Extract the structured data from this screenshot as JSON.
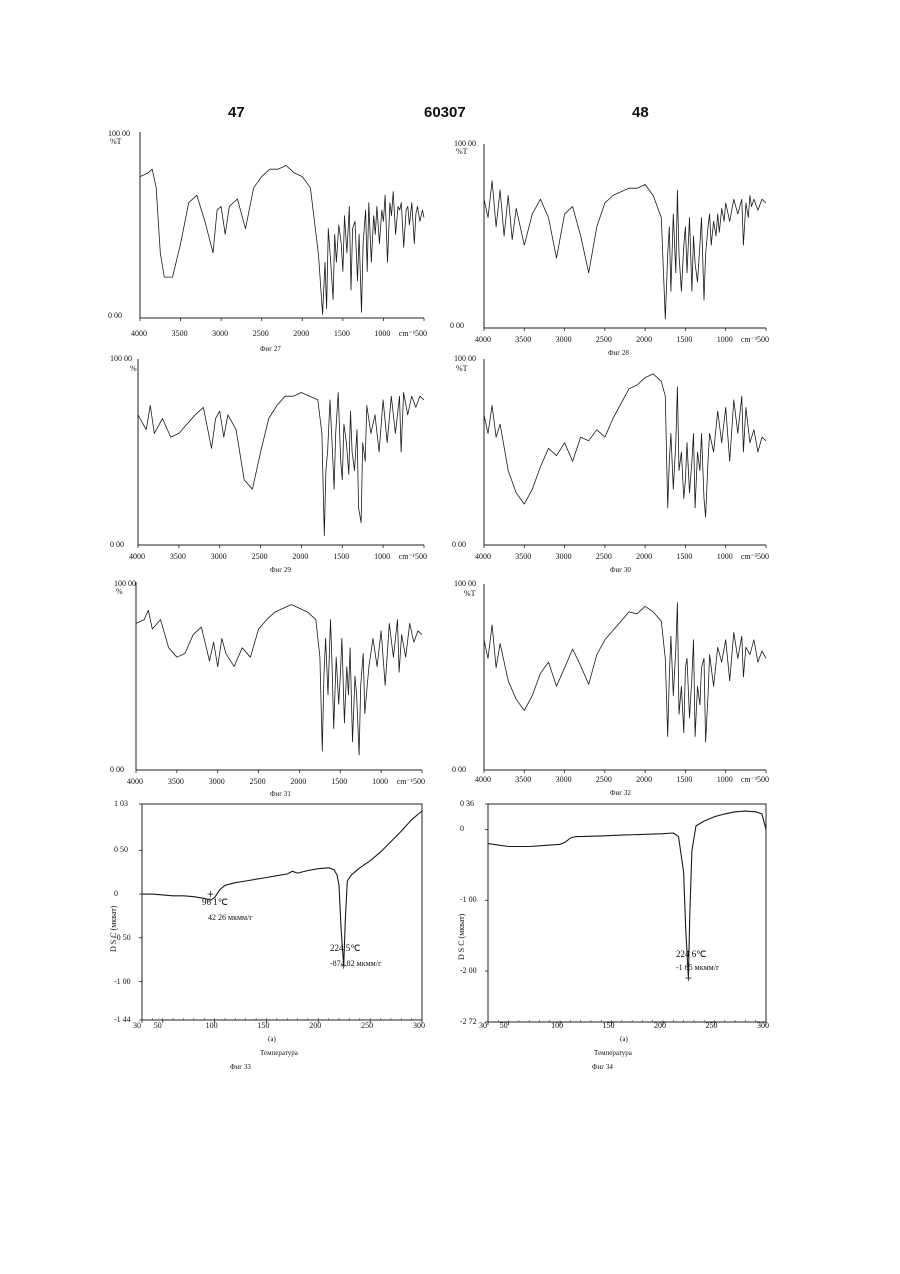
{
  "page_header": {
    "left": "47",
    "center": "60307",
    "right": "48"
  },
  "chart_data": [
    {
      "type": "line",
      "id": "ir27",
      "caption": "Фиг 27",
      "y_tick_labels": [
        "100 00",
        "%T",
        "0 00"
      ],
      "x_tick_labels": [
        "4000",
        "3500",
        "3000",
        "2500",
        "2000",
        "1500",
        "1000",
        "cm⁻¹",
        "500"
      ],
      "xlim": [
        4000,
        500
      ],
      "ylim": [
        0,
        100
      ],
      "x": [
        4000,
        3900,
        3850,
        3800,
        3750,
        3700,
        3600,
        3500,
        3400,
        3300,
        3200,
        3100,
        3050,
        3000,
        2950,
        2900,
        2800,
        2700,
        2600,
        2500,
        2400,
        2300,
        2200,
        2100,
        2000,
        1900,
        1800,
        1750,
        1720,
        1700,
        1680,
        1650,
        1620,
        1600,
        1580,
        1550,
        1520,
        1500,
        1480,
        1450,
        1420,
        1400,
        1380,
        1350,
        1320,
        1300,
        1270,
        1250,
        1220,
        1200,
        1180,
        1150,
        1120,
        1100,
        1080,
        1050,
        1020,
        1000,
        980,
        950,
        920,
        900,
        880,
        850,
        820,
        800,
        780,
        750,
        720,
        700,
        680,
        650,
        620,
        600,
        580,
        550,
        520,
        500
      ],
      "y": [
        76,
        78,
        80,
        70,
        35,
        22,
        22,
        40,
        62,
        66,
        52,
        35,
        58,
        60,
        45,
        60,
        64,
        48,
        70,
        76,
        80,
        80,
        82,
        78,
        76,
        70,
        34,
        2,
        30,
        5,
        48,
        30,
        10,
        45,
        30,
        50,
        40,
        25,
        55,
        35,
        60,
        15,
        48,
        52,
        20,
        45,
        3,
        40,
        58,
        25,
        62,
        30,
        55,
        45,
        60,
        40,
        58,
        52,
        66,
        30,
        62,
        55,
        68,
        45,
        60,
        58,
        62,
        38,
        58,
        60,
        50,
        62,
        40,
        56,
        60,
        52,
        58,
        54
      ]
    },
    {
      "type": "line",
      "id": "ir28",
      "caption": "Фиг 28",
      "y_tick_labels": [
        "100 00",
        "%T",
        "0 00"
      ],
      "x_tick_labels": [
        "4000",
        "3500",
        "3000",
        "2500",
        "2000",
        "1500",
        "1000",
        "cm⁻¹",
        "500"
      ],
      "xlim": [
        4000,
        500
      ],
      "ylim": [
        0,
        100
      ],
      "x": [
        4000,
        3950,
        3900,
        3850,
        3800,
        3750,
        3700,
        3650,
        3600,
        3500,
        3400,
        3300,
        3200,
        3100,
        3000,
        2900,
        2800,
        2700,
        2600,
        2500,
        2400,
        2300,
        2200,
        2100,
        2000,
        1900,
        1800,
        1750,
        1720,
        1700,
        1680,
        1650,
        1620,
        1600,
        1580,
        1550,
        1520,
        1500,
        1480,
        1450,
        1420,
        1400,
        1380,
        1350,
        1320,
        1300,
        1270,
        1250,
        1220,
        1200,
        1180,
        1150,
        1120,
        1100,
        1080,
        1050,
        1020,
        1000,
        950,
        900,
        850,
        800,
        780,
        750,
        720,
        700,
        680,
        650,
        600,
        550,
        500
      ],
      "y": [
        70,
        60,
        80,
        55,
        75,
        50,
        72,
        48,
        65,
        45,
        62,
        70,
        60,
        38,
        62,
        66,
        50,
        30,
        55,
        68,
        72,
        74,
        76,
        76,
        78,
        72,
        60,
        5,
        40,
        55,
        20,
        62,
        30,
        75,
        40,
        20,
        45,
        55,
        30,
        60,
        20,
        50,
        35,
        25,
        45,
        60,
        15,
        40,
        55,
        62,
        45,
        58,
        50,
        62,
        52,
        65,
        58,
        68,
        58,
        70,
        62,
        70,
        45,
        68,
        60,
        72,
        66,
        70,
        64,
        70,
        68
      ]
    },
    {
      "type": "line",
      "id": "ir29",
      "caption": "Фиг 29",
      "y_tick_labels": [
        "100 00",
        "%",
        "0 00"
      ],
      "x_tick_labels": [
        "4000",
        "3500",
        "3000",
        "2500",
        "2000",
        "1500",
        "1000",
        "cm⁻¹",
        "500"
      ],
      "xlim": [
        4000,
        500
      ],
      "ylim": [
        0,
        100
      ],
      "x": [
        4000,
        3900,
        3850,
        3800,
        3700,
        3600,
        3500,
        3400,
        3300,
        3200,
        3100,
        3050,
        3000,
        2950,
        2900,
        2800,
        2700,
        2600,
        2500,
        2400,
        2300,
        2200,
        2100,
        2000,
        1900,
        1800,
        1750,
        1720,
        1700,
        1680,
        1650,
        1620,
        1600,
        1580,
        1550,
        1520,
        1500,
        1480,
        1450,
        1420,
        1400,
        1380,
        1350,
        1320,
        1300,
        1270,
        1250,
        1220,
        1200,
        1150,
        1100,
        1050,
        1000,
        950,
        900,
        850,
        800,
        780,
        750,
        700,
        650,
        600,
        550,
        500
      ],
      "y": [
        70,
        62,
        75,
        60,
        68,
        58,
        60,
        65,
        70,
        74,
        52,
        68,
        72,
        58,
        70,
        62,
        35,
        30,
        50,
        68,
        75,
        80,
        80,
        82,
        80,
        78,
        60,
        5,
        40,
        50,
        78,
        50,
        30,
        60,
        82,
        45,
        35,
        65,
        55,
        38,
        72,
        50,
        40,
        62,
        20,
        12,
        55,
        45,
        75,
        60,
        70,
        50,
        78,
        55,
        80,
        60,
        80,
        50,
        82,
        70,
        80,
        74,
        80,
        78
      ]
    },
    {
      "type": "line",
      "id": "ir30",
      "caption": "Фиг 30",
      "y_tick_labels": [
        "100 00",
        "%T",
        "0 00"
      ],
      "x_tick_labels": [
        "4000",
        "3500",
        "3000",
        "2500",
        "2000",
        "1500",
        "1000",
        "cm⁻¹",
        "500"
      ],
      "xlim": [
        4000,
        500
      ],
      "ylim": [
        0,
        100
      ],
      "x": [
        4000,
        3950,
        3900,
        3850,
        3800,
        3700,
        3600,
        3500,
        3400,
        3300,
        3200,
        3100,
        3000,
        2900,
        2800,
        2700,
        2600,
        2500,
        2400,
        2300,
        2200,
        2100,
        2000,
        1900,
        1800,
        1750,
        1720,
        1700,
        1680,
        1650,
        1620,
        1600,
        1580,
        1550,
        1520,
        1500,
        1480,
        1450,
        1420,
        1400,
        1380,
        1350,
        1320,
        1300,
        1270,
        1250,
        1220,
        1200,
        1150,
        1100,
        1050,
        1000,
        950,
        900,
        850,
        800,
        780,
        750,
        700,
        650,
        600,
        550,
        500
      ],
      "y": [
        70,
        60,
        75,
        58,
        65,
        40,
        28,
        22,
        30,
        42,
        52,
        48,
        55,
        45,
        58,
        56,
        62,
        58,
        68,
        76,
        84,
        86,
        90,
        92,
        88,
        80,
        20,
        45,
        60,
        30,
        55,
        85,
        40,
        50,
        25,
        35,
        55,
        28,
        45,
        60,
        20,
        50,
        40,
        60,
        25,
        15,
        45,
        60,
        50,
        72,
        55,
        74,
        45,
        78,
        60,
        80,
        50,
        74,
        55,
        62,
        50,
        58,
        56
      ]
    },
    {
      "type": "line",
      "id": "ir31",
      "caption": "Фиг 31",
      "y_tick_labels": [
        "100 00",
        "%",
        "0 00"
      ],
      "x_tick_labels": [
        "4000",
        "3500",
        "3000",
        "2500",
        "2000",
        "1500",
        "1000",
        "cm⁻¹",
        "500"
      ],
      "xlim": [
        4000,
        500
      ],
      "ylim": [
        0,
        100
      ],
      "x": [
        4000,
        3900,
        3850,
        3800,
        3700,
        3600,
        3500,
        3400,
        3300,
        3200,
        3100,
        3050,
        3000,
        2950,
        2900,
        2800,
        2700,
        2600,
        2500,
        2400,
        2300,
        2200,
        2100,
        2000,
        1900,
        1800,
        1750,
        1720,
        1700,
        1680,
        1650,
        1620,
        1600,
        1580,
        1550,
        1520,
        1500,
        1480,
        1450,
        1420,
        1400,
        1380,
        1350,
        1320,
        1300,
        1270,
        1250,
        1220,
        1200,
        1150,
        1100,
        1050,
        1000,
        950,
        900,
        850,
        800,
        780,
        750,
        700,
        650,
        600,
        550,
        500
      ],
      "y": [
        78,
        80,
        85,
        75,
        80,
        65,
        60,
        62,
        72,
        76,
        58,
        68,
        55,
        70,
        62,
        55,
        65,
        60,
        75,
        80,
        84,
        86,
        88,
        86,
        84,
        80,
        60,
        10,
        50,
        70,
        40,
        80,
        55,
        22,
        60,
        35,
        50,
        70,
        25,
        55,
        40,
        65,
        15,
        50,
        40,
        8,
        45,
        62,
        30,
        55,
        70,
        55,
        74,
        45,
        78,
        60,
        80,
        52,
        72,
        60,
        78,
        68,
        74,
        72
      ]
    },
    {
      "type": "line",
      "id": "ir32",
      "caption": "Фиг 32",
      "y_tick_labels": [
        "100 00",
        "%T",
        "0 00"
      ],
      "x_tick_labels": [
        "4000",
        "3500",
        "3000",
        "2500",
        "2000",
        "1500",
        "1000",
        "cm⁻¹",
        "500"
      ],
      "xlim": [
        4000,
        500
      ],
      "ylim": [
        0,
        100
      ],
      "x": [
        4000,
        3950,
        3900,
        3850,
        3800,
        3700,
        3600,
        3500,
        3400,
        3300,
        3200,
        3100,
        3000,
        2900,
        2800,
        2700,
        2600,
        2500,
        2400,
        2300,
        2200,
        2100,
        2000,
        1900,
        1800,
        1750,
        1720,
        1700,
        1680,
        1650,
        1620,
        1600,
        1580,
        1550,
        1520,
        1500,
        1480,
        1450,
        1420,
        1400,
        1380,
        1350,
        1320,
        1300,
        1270,
        1250,
        1220,
        1200,
        1150,
        1100,
        1050,
        1000,
        950,
        900,
        850,
        800,
        780,
        750,
        700,
        650,
        600,
        550,
        500
      ],
      "y": [
        70,
        60,
        78,
        55,
        68,
        48,
        38,
        32,
        40,
        52,
        58,
        45,
        55,
        65,
        56,
        46,
        62,
        70,
        75,
        80,
        85,
        84,
        88,
        85,
        80,
        60,
        18,
        50,
        72,
        40,
        65,
        90,
        30,
        45,
        20,
        55,
        60,
        28,
        50,
        70,
        18,
        45,
        35,
        55,
        60,
        15,
        40,
        62,
        45,
        66,
        58,
        70,
        48,
        74,
        60,
        72,
        50,
        66,
        62,
        70,
        58,
        64,
        60
      ]
    },
    {
      "type": "line",
      "id": "dsc33",
      "caption": "Фиг 33",
      "sublabel": "(a)",
      "xlabel": "Температура",
      "ylabel": "D S C  (мкват)",
      "y_tick_labels": [
        "1 03",
        "0 50",
        "0",
        "-0 50",
        "-1 00",
        "-1 44"
      ],
      "x_tick_labels": [
        "30",
        "50",
        "100",
        "150",
        "200",
        "250",
        "300"
      ],
      "xlim": [
        30,
        300
      ],
      "ylim": [
        -1.44,
        1.03
      ],
      "x": [
        30,
        40,
        50,
        60,
        70,
        80,
        90,
        96,
        100,
        105,
        110,
        120,
        130,
        140,
        150,
        160,
        170,
        175,
        180,
        190,
        200,
        210,
        215,
        218,
        220,
        222,
        224.5,
        226,
        228,
        232,
        240,
        250,
        260,
        270,
        280,
        290,
        300
      ],
      "y": [
        0.0,
        0.0,
        -0.01,
        -0.02,
        -0.02,
        -0.03,
        -0.05,
        -0.07,
        -0.04,
        0.05,
        0.1,
        0.13,
        0.15,
        0.17,
        0.19,
        0.21,
        0.23,
        0.26,
        0.24,
        0.27,
        0.29,
        0.3,
        0.28,
        0.22,
        0.1,
        -0.4,
        -0.82,
        -0.3,
        0.15,
        0.22,
        0.3,
        0.38,
        0.48,
        0.6,
        0.72,
        0.85,
        0.95
      ],
      "annotations": [
        {
          "label": "96 1℃",
          "detail": "42 26  мкмм/г",
          "x": 96.1
        },
        {
          "label": "224 5℃",
          "detail": "-874 82  мкмм/г",
          "x": 224.5
        }
      ]
    },
    {
      "type": "line",
      "id": "dsc34",
      "caption": "Фиг 34",
      "sublabel": "(a)",
      "xlabel": "Температура",
      "ylabel": "D S C  (мкват)",
      "y_tick_labels": [
        "0 36",
        "0",
        "-1 00",
        "-2 00",
        "-2 72"
      ],
      "x_tick_labels": [
        "30",
        "50",
        "100",
        "150",
        "200",
        "250",
        "300"
      ],
      "xlim": [
        30,
        300
      ],
      "ylim": [
        -2.72,
        0.36
      ],
      "x": [
        30,
        40,
        50,
        60,
        70,
        80,
        90,
        100,
        105,
        110,
        115,
        120,
        140,
        160,
        180,
        200,
        210,
        215,
        220,
        222,
        224.6,
        226,
        228,
        232,
        240,
        250,
        260,
        270,
        280,
        290,
        296,
        300
      ],
      "y": [
        -0.2,
        -0.22,
        -0.24,
        -0.24,
        -0.24,
        -0.23,
        -0.22,
        -0.21,
        -0.18,
        -0.12,
        -0.1,
        -0.1,
        -0.09,
        -0.08,
        -0.07,
        -0.06,
        -0.05,
        -0.1,
        -0.6,
        -1.4,
        -2.1,
        -1.2,
        -0.3,
        0.05,
        0.12,
        0.18,
        0.22,
        0.25,
        0.26,
        0.25,
        0.22,
        0.0
      ],
      "annotations": [
        {
          "label": "224 6℃",
          "detail": "-1 65  мкмм/г",
          "x": 224.6
        }
      ]
    }
  ]
}
